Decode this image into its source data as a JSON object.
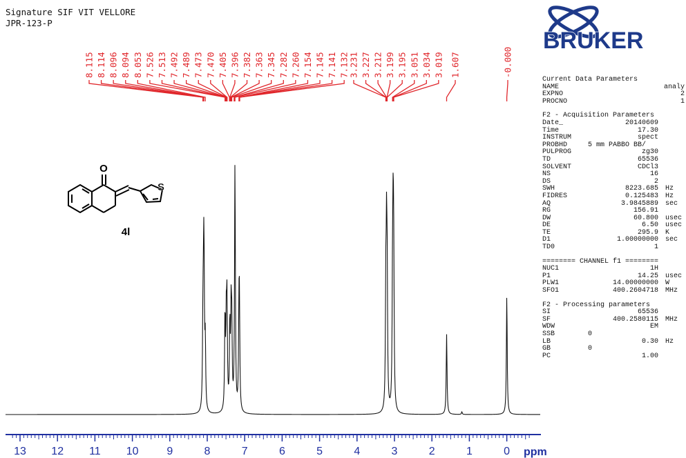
{
  "header": {
    "line1": "Signature SIF VIT VELLORE",
    "line2": "JPR-123-P"
  },
  "logo": {
    "text": "BRUKER",
    "color": "#1e3a8a"
  },
  "compound": {
    "label": "4l",
    "atom_O": "O",
    "atom_S": "S"
  },
  "colors": {
    "peak_label": "#e0262b",
    "axis": "#1f2fa0",
    "trace": "#111111"
  },
  "params": {
    "current": {
      "title": "Current Data Parameters",
      "rows": [
        {
          "k": "NAME",
          "v": "analy"
        },
        {
          "k": "EXPNO",
          "v": "2"
        },
        {
          "k": "PROCNO",
          "v": "1"
        }
      ]
    },
    "acq": {
      "title": "F2 - Acquisition Parameters",
      "rows": [
        {
          "k": "Date_",
          "v": "20140609",
          "u": ""
        },
        {
          "k": "Time",
          "v": "17.30",
          "u": ""
        },
        {
          "k": "INSTRUM",
          "v": "spect",
          "u": ""
        },
        {
          "k": "PROBHD",
          "m": "5 mm PABBO BB/",
          "v": "",
          "u": ""
        },
        {
          "k": "PULPROG",
          "v": "zg30",
          "u": ""
        },
        {
          "k": "TD",
          "v": "65536",
          "u": ""
        },
        {
          "k": "SOLVENT",
          "v": "CDCl3",
          "u": ""
        },
        {
          "k": "NS",
          "v": "16",
          "u": ""
        },
        {
          "k": "DS",
          "v": "2",
          "u": ""
        },
        {
          "k": "SWH",
          "v": "8223.685",
          "u": "Hz"
        },
        {
          "k": "FIDRES",
          "v": "0.125483",
          "u": "Hz"
        },
        {
          "k": "AQ",
          "v": "3.9845889",
          "u": "sec"
        },
        {
          "k": "RG",
          "v": "156.91",
          "u": ""
        },
        {
          "k": "DW",
          "v": "60.800",
          "u": "usec"
        },
        {
          "k": "DE",
          "v": "6.50",
          "u": "usec"
        },
        {
          "k": "TE",
          "v": "295.9",
          "u": "K"
        },
        {
          "k": "D1",
          "v": "1.00000000",
          "u": "sec"
        },
        {
          "k": "TD0",
          "v": "1",
          "u": ""
        }
      ]
    },
    "channel": {
      "title": "======== CHANNEL f1 ========",
      "rows": [
        {
          "k": "NUC1",
          "v": "1H",
          "u": ""
        },
        {
          "k": "P1",
          "v": "14.25",
          "u": "usec"
        },
        {
          "k": "PLW1",
          "v": "14.00000000",
          "u": "W"
        },
        {
          "k": "SFO1",
          "v": "400.2604718",
          "u": "MHz"
        }
      ]
    },
    "proc": {
      "title": "F2 - Processing parameters",
      "rows": [
        {
          "k": "SI",
          "m": "",
          "v": "65536",
          "u": ""
        },
        {
          "k": "SF",
          "m": "",
          "v": "400.2580115",
          "u": "MHz"
        },
        {
          "k": "WDW",
          "m": "",
          "v": "EM",
          "u": ""
        },
        {
          "k": "SSB",
          "m": "0",
          "v": "",
          "u": ""
        },
        {
          "k": "LB",
          "m": "",
          "v": "0.30",
          "u": "Hz"
        },
        {
          "k": "GB",
          "m": "0",
          "v": "",
          "u": ""
        },
        {
          "k": "PC",
          "m": "",
          "v": "1.00",
          "u": ""
        }
      ]
    }
  },
  "chart_data": {
    "type": "line",
    "xlabel": "ppm",
    "xlim": [
      13.3,
      -0.6
    ],
    "x_reversed": true,
    "x_ticks": [
      13,
      12,
      11,
      10,
      9,
      8,
      7,
      6,
      5,
      4,
      3,
      2,
      1,
      0
    ],
    "peak_labels": [
      "8.115",
      "8.114",
      "8.096",
      "8.094",
      "8.053",
      "7.526",
      "7.513",
      "7.492",
      "7.489",
      "7.473",
      "7.470",
      "7.405",
      "7.396",
      "7.382",
      "7.363",
      "7.345",
      "7.282",
      "7.260",
      "7.154",
      "7.145",
      "7.141",
      "7.132",
      "3.231",
      "3.227",
      "3.212",
      "3.199",
      "3.195",
      "3.051",
      "3.034",
      "3.019",
      "1.607",
      "-0.000"
    ],
    "peaks": [
      {
        "ppm": 8.115,
        "h": 0.33
      },
      {
        "ppm": 8.096,
        "h": 0.4
      },
      {
        "ppm": 8.085,
        "h": 0.38
      },
      {
        "ppm": 8.053,
        "h": 0.25
      },
      {
        "ppm": 7.526,
        "h": 0.36
      },
      {
        "ppm": 7.492,
        "h": 0.3
      },
      {
        "ppm": 7.473,
        "h": 0.38
      },
      {
        "ppm": 7.396,
        "h": 0.32
      },
      {
        "ppm": 7.363,
        "h": 0.34
      },
      {
        "ppm": 7.345,
        "h": 0.28
      },
      {
        "ppm": 7.26,
        "h": 0.96
      },
      {
        "ppm": 7.154,
        "h": 0.3
      },
      {
        "ppm": 7.141,
        "h": 0.36
      },
      {
        "ppm": 3.231,
        "h": 0.41
      },
      {
        "ppm": 3.212,
        "h": 0.56
      },
      {
        "ppm": 3.195,
        "h": 0.45
      },
      {
        "ppm": 3.051,
        "h": 0.45
      },
      {
        "ppm": 3.034,
        "h": 0.6
      },
      {
        "ppm": 3.019,
        "h": 0.44
      },
      {
        "ppm": 1.607,
        "h": 0.31
      },
      {
        "ppm": 1.2,
        "h": 0.01
      },
      {
        "ppm": 0.0,
        "h": 0.46
      }
    ]
  }
}
